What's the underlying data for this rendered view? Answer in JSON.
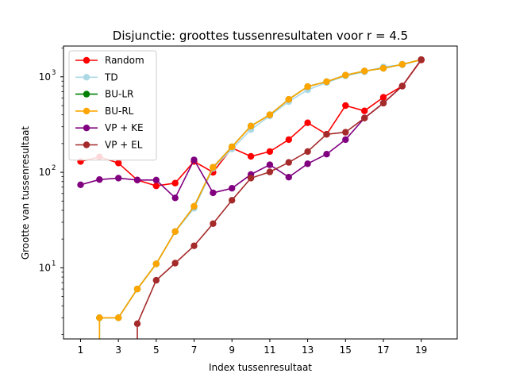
{
  "chart_data": {
    "type": "line",
    "title": "Disjunctie: groottes tussenresultaten voor r = 4.5",
    "xlabel": "Index tussenresultaat",
    "ylabel": "Grootte van tussenresultaat",
    "yscale": "log",
    "xlim": [
      0.1,
      20.9
    ],
    "ylim": [
      1.8,
      2100
    ],
    "xticks": [
      1,
      3,
      5,
      7,
      9,
      11,
      13,
      15,
      17,
      19
    ],
    "yticks": [
      {
        "value": 10,
        "label": "10",
        "exp": "1"
      },
      {
        "value": 100,
        "label": "10",
        "exp": "2"
      },
      {
        "value": 1000,
        "label": "10",
        "exp": "3"
      }
    ],
    "grid": false,
    "legend_position": "upper-left",
    "series": [
      {
        "name": "Random",
        "color": "#ff0000",
        "x": [
          1,
          2,
          3,
          4,
          5,
          6,
          7,
          8,
          9,
          10,
          11,
          12,
          13,
          14,
          15,
          16,
          17,
          18,
          19
        ],
        "y": [
          130,
          145,
          125,
          83,
          72,
          77,
          130,
          100,
          180,
          147,
          165,
          220,
          330,
          250,
          500,
          440,
          610,
          800,
          1500
        ]
      },
      {
        "name": "TD",
        "color": "#add8e6",
        "x": [
          2,
          2,
          3,
          4,
          5,
          6,
          7,
          8,
          9,
          10,
          11,
          12,
          13,
          14,
          15,
          16,
          17,
          18,
          19
        ],
        "y": [
          1.8,
          3,
          3,
          6,
          11,
          24,
          42,
          110,
          175,
          280,
          390,
          550,
          730,
          870,
          1020,
          1130,
          1270,
          1340,
          1510
        ]
      },
      {
        "name": "BU-LR",
        "color": "#008000",
        "x": [
          2,
          2,
          3,
          4,
          5,
          6,
          7,
          8,
          9,
          10,
          11,
          12,
          13,
          14,
          15,
          16,
          17,
          18,
          19
        ],
        "y": [
          1.8,
          3,
          3,
          6,
          11,
          24,
          44,
          113,
          185,
          305,
          400,
          580,
          790,
          890,
          1040,
          1150,
          1230,
          1350,
          1510
        ]
      },
      {
        "name": "BU-RL",
        "color": "#ffa500",
        "x": [
          2,
          2,
          3,
          4,
          5,
          6,
          7,
          8,
          9,
          10,
          11,
          12,
          13,
          14,
          15,
          16,
          17,
          18,
          19
        ],
        "y": [
          1.8,
          3,
          3,
          6,
          11,
          24,
          44,
          113,
          185,
          305,
          400,
          580,
          790,
          890,
          1040,
          1150,
          1230,
          1350,
          1510
        ]
      },
      {
        "name": "VP + KE",
        "color": "#800080",
        "x": [
          1,
          2,
          3,
          4,
          5,
          6,
          7,
          8,
          9,
          10,
          11,
          12,
          13,
          14,
          15,
          16,
          17,
          18,
          19
        ],
        "y": [
          74,
          84,
          87,
          83,
          83,
          54,
          135,
          61,
          68,
          95,
          120,
          89,
          123,
          155,
          220,
          370,
          530,
          800,
          1510
        ]
      },
      {
        "name": "VP + EL",
        "color": "#a52a2a",
        "x": [
          4,
          4,
          5,
          6,
          7,
          8,
          9,
          10,
          11,
          12,
          13,
          14,
          15,
          16,
          17,
          18,
          19
        ],
        "y": [
          1.8,
          2.6,
          7.4,
          11.2,
          17,
          29,
          51,
          87,
          101,
          127,
          165,
          250,
          263,
          370,
          530,
          800,
          1510
        ]
      }
    ]
  }
}
